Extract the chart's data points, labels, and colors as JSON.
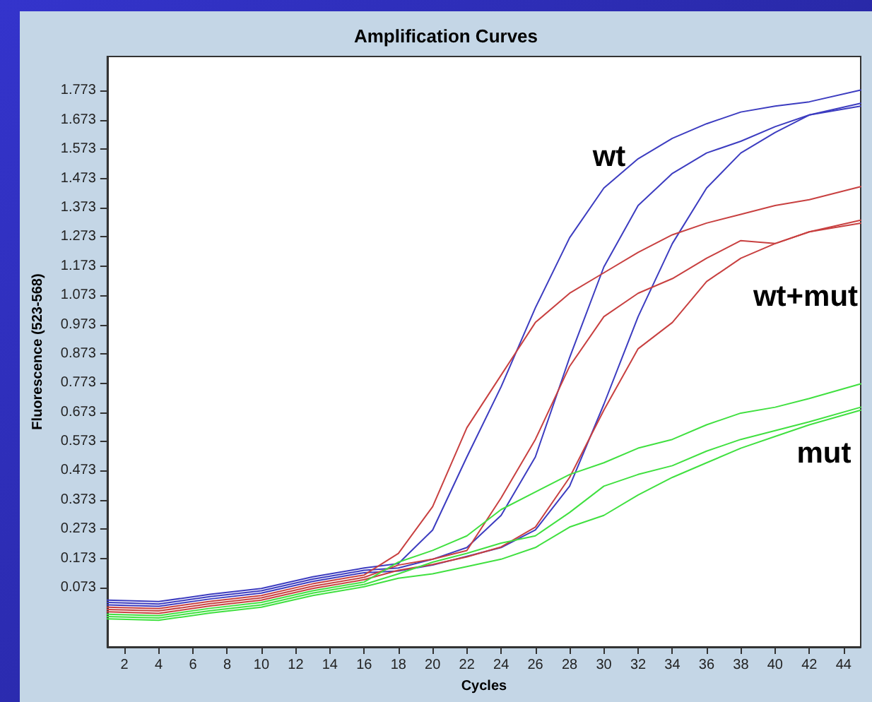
{
  "chart_data": {
    "type": "line",
    "title": "Amplification Curves",
    "xlabel": "Cycles",
    "ylabel": "Fluorescence (523-568)",
    "x": [
      1,
      4,
      7,
      10,
      13,
      16,
      18,
      20,
      22,
      24,
      26,
      28,
      30,
      32,
      34,
      36,
      38,
      40,
      42,
      45
    ],
    "xlim": [
      1,
      45
    ],
    "xticks": [
      2,
      4,
      6,
      8,
      10,
      12,
      14,
      16,
      18,
      20,
      22,
      24,
      26,
      28,
      30,
      32,
      34,
      36,
      38,
      40,
      42,
      44
    ],
    "ylim": [
      -0.13,
      1.89
    ],
    "yticks": [
      0.073,
      0.173,
      0.273,
      0.373,
      0.473,
      0.573,
      0.673,
      0.773,
      0.873,
      0.973,
      1.073,
      1.173,
      1.273,
      1.373,
      1.473,
      1.573,
      1.673,
      1.773
    ],
    "grid": false,
    "marker": "none",
    "line_style": "solid",
    "series": [
      {
        "color": "#3c3cc0",
        "values": [
          0.03,
          0.025,
          0.05,
          0.07,
          0.11,
          0.14,
          0.155,
          0.27,
          0.52,
          0.76,
          1.03,
          1.27,
          1.44,
          1.54,
          1.61,
          1.66,
          1.7,
          1.72,
          1.735,
          1.775
        ]
      },
      {
        "color": "#3c3cc0",
        "values": [
          0.022,
          0.017,
          0.042,
          0.062,
          0.102,
          0.132,
          0.14,
          0.17,
          0.21,
          0.32,
          0.52,
          0.86,
          1.17,
          1.38,
          1.49,
          1.56,
          1.6,
          1.65,
          1.69,
          1.73
        ]
      },
      {
        "color": "#3c3cc0",
        "values": [
          0.014,
          0.009,
          0.034,
          0.054,
          0.094,
          0.124,
          0.13,
          0.15,
          0.18,
          0.21,
          0.27,
          0.42,
          0.7,
          1.0,
          1.25,
          1.44,
          1.56,
          1.63,
          1.69,
          1.72
        ]
      },
      {
        "color": "#c84040",
        "values": [
          0.006,
          0.001,
          0.026,
          0.046,
          0.086,
          0.116,
          0.19,
          0.35,
          0.62,
          0.8,
          0.98,
          1.08,
          1.15,
          1.22,
          1.28,
          1.32,
          1.35,
          1.38,
          1.4,
          1.445
        ]
      },
      {
        "color": "#c84040",
        "values": [
          -0.002,
          -0.007,
          0.018,
          0.038,
          0.078,
          0.108,
          0.15,
          0.17,
          0.2,
          0.38,
          0.58,
          0.83,
          1.0,
          1.08,
          1.13,
          1.2,
          1.26,
          1.25,
          1.29,
          1.33
        ]
      },
      {
        "color": "#c84040",
        "values": [
          -0.01,
          -0.015,
          0.01,
          0.03,
          0.07,
          0.1,
          0.132,
          0.152,
          0.178,
          0.212,
          0.28,
          0.45,
          0.68,
          0.89,
          0.98,
          1.12,
          1.2,
          1.25,
          1.29,
          1.32
        ]
      },
      {
        "color": "#40e040",
        "values": [
          -0.018,
          -0.023,
          0.002,
          0.022,
          0.062,
          0.092,
          0.16,
          0.2,
          0.25,
          0.34,
          0.4,
          0.46,
          0.5,
          0.55,
          0.58,
          0.63,
          0.67,
          0.69,
          0.72,
          0.77
        ]
      },
      {
        "color": "#40e040",
        "values": [
          -0.026,
          -0.031,
          -0.006,
          0.014,
          0.054,
          0.084,
          0.12,
          0.16,
          0.19,
          0.225,
          0.25,
          0.33,
          0.42,
          0.46,
          0.49,
          0.54,
          0.58,
          0.61,
          0.64,
          0.69
        ]
      },
      {
        "color": "#40e040",
        "values": [
          -0.034,
          -0.039,
          -0.014,
          0.006,
          0.046,
          0.076,
          0.105,
          0.12,
          0.145,
          0.17,
          0.21,
          0.28,
          0.32,
          0.39,
          0.45,
          0.5,
          0.55,
          0.59,
          0.63,
          0.68
        ]
      }
    ],
    "annotations": [
      "wt",
      "wt+mut",
      "mut"
    ]
  }
}
